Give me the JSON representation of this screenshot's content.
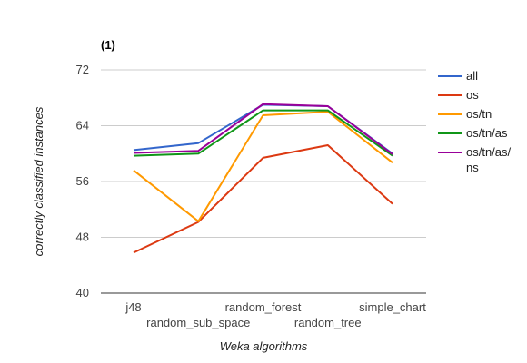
{
  "chart_data": {
    "type": "line",
    "title": "(1)",
    "xlabel": "Weka algorithms",
    "ylabel": "correctly classified instances",
    "categories": [
      "j48",
      "random_sub_space",
      "random_forest",
      "random_tree",
      "simple_chart"
    ],
    "ylim": [
      40,
      72
    ],
    "yticks": [
      40,
      48,
      56,
      64,
      72
    ],
    "grid": true,
    "legend_position": "right",
    "series": [
      {
        "name": "all",
        "color": "#3366cc",
        "values": [
          60.5,
          61.5,
          67.0,
          66.8,
          60.0
        ]
      },
      {
        "name": "os",
        "color": "#dc3912",
        "values": [
          45.8,
          50.2,
          59.4,
          61.2,
          52.8
        ]
      },
      {
        "name": "os/tn",
        "color": "#ff9900",
        "values": [
          57.6,
          50.3,
          65.5,
          66.0,
          58.7
        ]
      },
      {
        "name": "os/tn/as",
        "color": "#109618",
        "values": [
          59.7,
          60.0,
          66.2,
          66.2,
          59.7
        ]
      },
      {
        "name": "os/tn/as/ns",
        "color": "#990099",
        "values": [
          60.1,
          60.4,
          67.1,
          66.8,
          59.9
        ]
      }
    ]
  }
}
